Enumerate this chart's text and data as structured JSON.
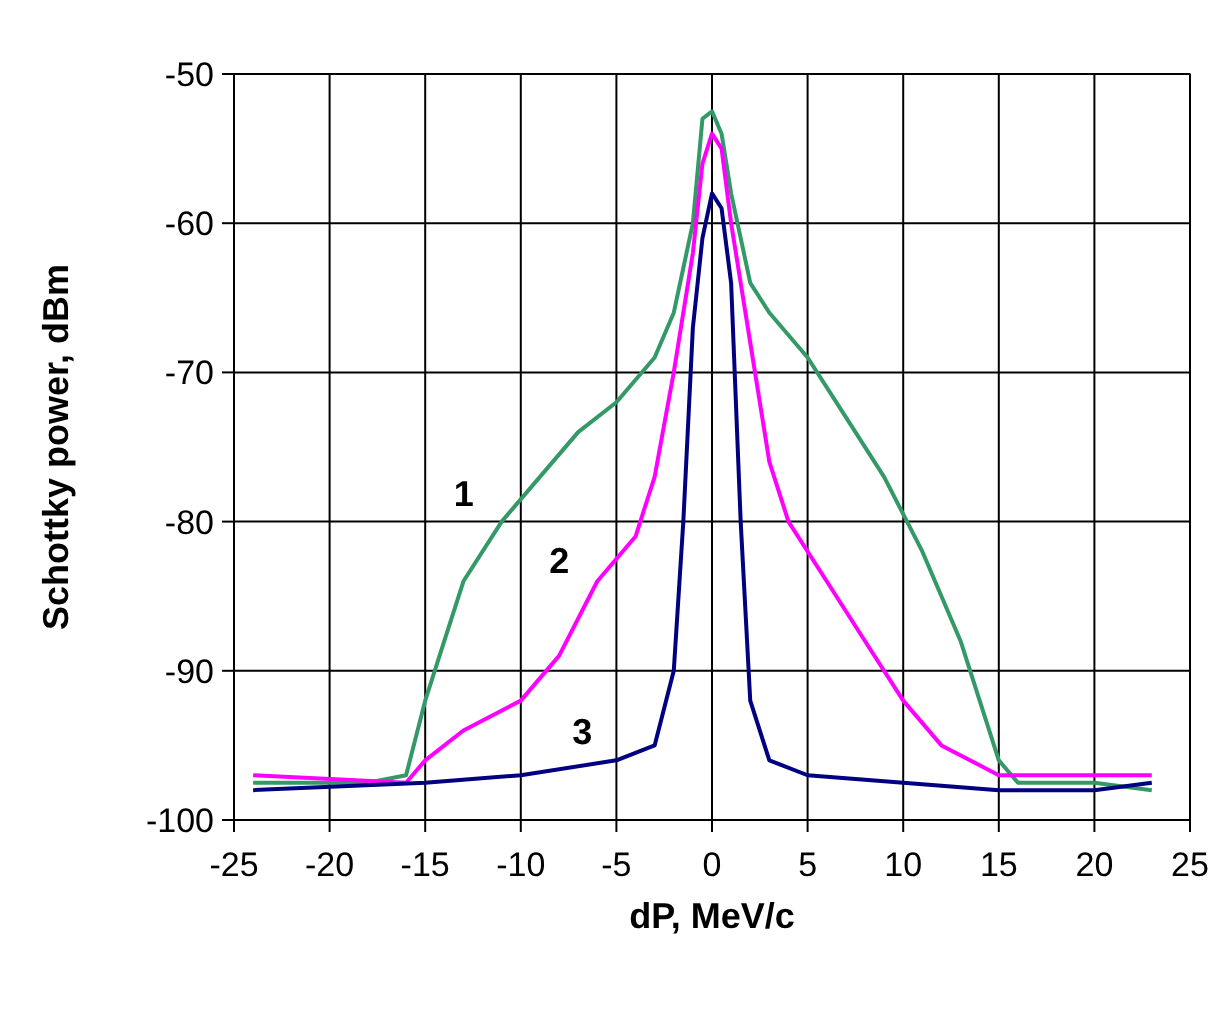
{
  "chart_data": {
    "type": "line",
    "xlabel": "dP, MeV/c",
    "ylabel": "Schottky power, dBm",
    "xlim": [
      -25,
      25
    ],
    "xticks": [
      -25,
      -20,
      -15,
      -10,
      -5,
      0,
      5,
      10,
      15,
      20,
      25
    ],
    "ylim": [
      -100,
      -50
    ],
    "yticks": [
      -100,
      -90,
      -80,
      -70,
      -60,
      -50
    ],
    "grid": true,
    "series": [
      {
        "name": "1",
        "color": "#339966",
        "x": [
          -24,
          -18,
          -16,
          -15,
          -14,
          -13,
          -11,
          -9,
          -7,
          -5,
          -3,
          -2,
          -1,
          -0.5,
          0,
          0.5,
          1,
          2,
          3,
          5,
          7,
          9,
          11,
          13,
          14,
          15,
          16,
          20,
          23
        ],
        "values": [
          -97.5,
          -97.5,
          -97,
          -92,
          -88,
          -84,
          -80,
          -77,
          -74,
          -72,
          -69,
          -66,
          -60,
          -53,
          -52.5,
          -54,
          -58,
          -64,
          -66,
          -69,
          -73,
          -77,
          -82,
          -88,
          -92,
          -96,
          -97.5,
          -97.5,
          -98
        ]
      },
      {
        "name": "2",
        "color": "#ff00ff",
        "x": [
          -24,
          -16,
          -15,
          -13,
          -10,
          -8,
          -6,
          -4,
          -3,
          -2,
          -1,
          -0.5,
          0,
          0.5,
          1,
          2,
          3,
          4,
          6,
          8,
          10,
          12,
          15,
          20,
          23
        ],
        "values": [
          -97,
          -97.5,
          -96,
          -94,
          -92,
          -89,
          -84,
          -81,
          -77,
          -70,
          -62,
          -56,
          -54,
          -55,
          -60,
          -68,
          -76,
          -80,
          -84,
          -88,
          -92,
          -95,
          -97,
          -97,
          -97
        ]
      },
      {
        "name": "3",
        "color": "#000080",
        "x": [
          -24,
          -15,
          -10,
          -5,
          -3,
          -2,
          -1.5,
          -1,
          -0.5,
          0,
          0.5,
          1,
          1.5,
          2,
          3,
          5,
          10,
          15,
          20,
          23
        ],
        "values": [
          -98,
          -97.5,
          -97,
          -96,
          -95,
          -90,
          -80,
          -67,
          -61,
          -58,
          -59,
          -64,
          -80,
          -92,
          -96,
          -97,
          -97.5,
          -98,
          -98,
          -97.5
        ]
      }
    ]
  }
}
